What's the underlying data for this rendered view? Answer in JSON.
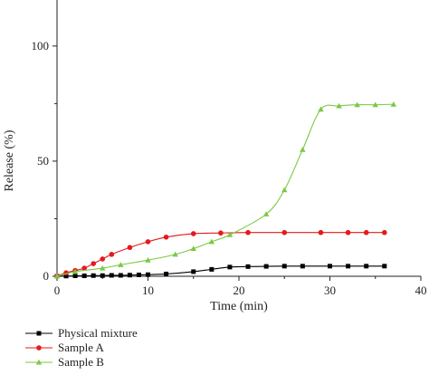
{
  "chart_data": {
    "type": "line",
    "xlabel": "Time (min)",
    "ylabel": "Release (%)",
    "xlim": [
      0,
      40
    ],
    "ylim": [
      0,
      120
    ],
    "xticks": [
      0,
      10,
      20,
      30,
      40
    ],
    "yticks": [
      0,
      50,
      100
    ],
    "grid": false,
    "legend_position": "bottom-left",
    "series": [
      {
        "name": "Physical mixture",
        "color": "#000000",
        "marker": "square",
        "x": [
          0,
          1,
          2,
          3,
          4,
          5,
          6,
          7,
          8,
          9,
          10,
          12,
          15,
          17,
          19,
          21,
          23,
          25,
          27,
          30,
          32,
          34,
          36
        ],
        "y": [
          0,
          0.1,
          0.2,
          0.2,
          0.3,
          0.3,
          0.4,
          0.4,
          0.5,
          0.6,
          0.7,
          1.0,
          2.0,
          3.0,
          4.0,
          4.2,
          4.3,
          4.4,
          4.4,
          4.4,
          4.4,
          4.4,
          4.4
        ]
      },
      {
        "name": "Sample A",
        "color": "#e41a1c",
        "marker": "circle",
        "x": [
          0,
          1,
          2,
          3,
          4,
          5,
          6,
          8,
          10,
          12,
          15,
          18,
          21,
          25,
          29,
          32,
          34,
          36
        ],
        "y": [
          0,
          1.5,
          2.5,
          3.5,
          5.5,
          7.5,
          9.5,
          12.5,
          15.0,
          17.0,
          18.5,
          18.8,
          19.0,
          19.0,
          19.0,
          19.0,
          19.0,
          19.0
        ]
      },
      {
        "name": "Sample B",
        "color": "#7ac943",
        "marker": "triangle",
        "x": [
          0,
          2,
          5,
          7,
          10,
          13,
          15,
          17,
          19,
          23,
          25,
          27,
          29,
          31,
          33,
          35,
          37
        ],
        "y": [
          0,
          2.0,
          3.5,
          5.0,
          7.0,
          9.5,
          12.0,
          15.0,
          18.0,
          27.0,
          37.5,
          55.0,
          72.5,
          74.0,
          74.5,
          74.5,
          74.7
        ]
      }
    ]
  }
}
